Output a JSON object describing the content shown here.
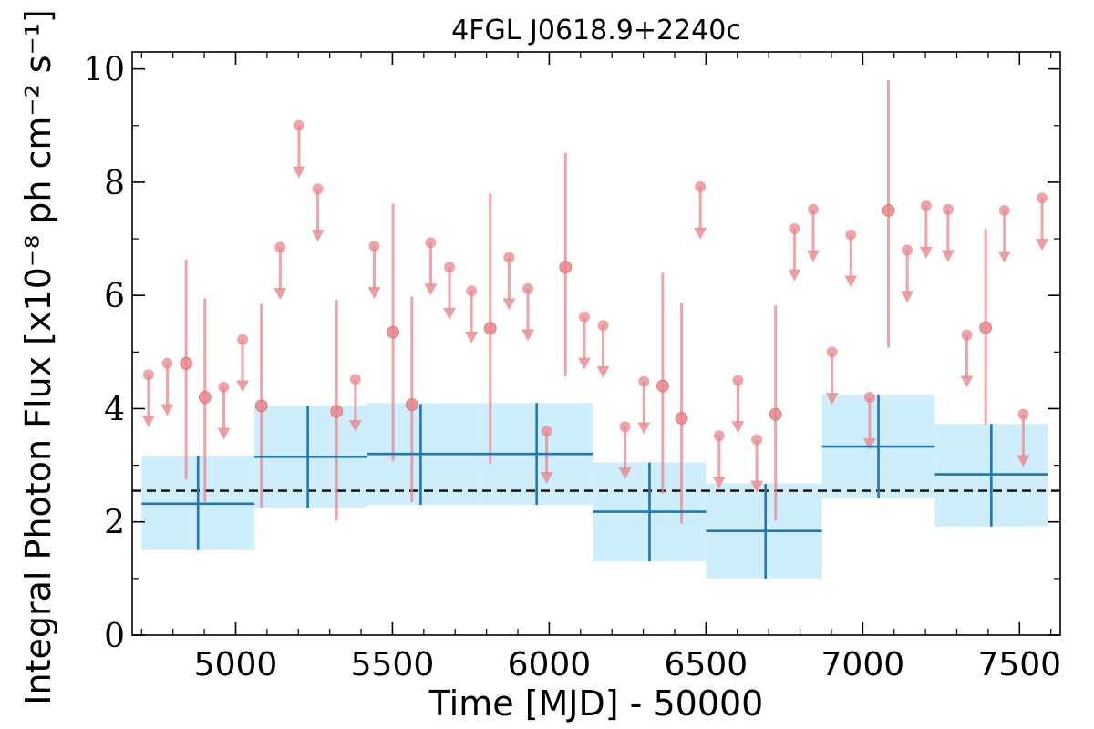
{
  "chart_data": {
    "type": "scatter",
    "title": "4FGL J0618.9+2240c",
    "xlabel": "Time [MJD] - 50000",
    "ylabel": "Integral Photon Flux [x10⁻⁸ ph cm⁻² s⁻¹]",
    "xlim": [
      4670,
      7630
    ],
    "ylim": [
      0,
      10.3
    ],
    "xticks": [
      5000,
      5500,
      6000,
      6500,
      7000,
      7500
    ],
    "yticks": [
      0,
      2,
      4,
      6,
      8,
      10
    ],
    "grid": false,
    "reference_line": 2.55,
    "colors": {
      "monthly": "#e8868c",
      "yearly_box": "#cfeefc",
      "yearly_line": "#1f77b4",
      "reference": "#000000"
    },
    "monthly_detections": [
      {
        "x": 4842,
        "y": 4.8,
        "ylo": 2.75,
        "yhi": 6.63
      },
      {
        "x": 4902,
        "y": 4.2,
        "ylo": 2.35,
        "yhi": 5.95
      },
      {
        "x": 5082,
        "y": 4.05,
        "ylo": 2.25,
        "yhi": 5.85
      },
      {
        "x": 5322,
        "y": 3.95,
        "ylo": 2.02,
        "yhi": 5.92
      },
      {
        "x": 5502,
        "y": 5.35,
        "ylo": 3.07,
        "yhi": 7.62
      },
      {
        "x": 5562,
        "y": 4.07,
        "ylo": 2.35,
        "yhi": 5.98
      },
      {
        "x": 5812,
        "y": 5.42,
        "ylo": 3.02,
        "yhi": 7.8
      },
      {
        "x": 6052,
        "y": 6.5,
        "ylo": 4.57,
        "yhi": 8.52
      },
      {
        "x": 6362,
        "y": 4.4,
        "ylo": 2.5,
        "yhi": 6.4
      },
      {
        "x": 6422,
        "y": 3.83,
        "ylo": 1.97,
        "yhi": 5.87
      },
      {
        "x": 6722,
        "y": 3.9,
        "ylo": 2.02,
        "yhi": 5.82
      },
      {
        "x": 7082,
        "y": 7.5,
        "ylo": 5.08,
        "yhi": 9.8
      },
      {
        "x": 7392,
        "y": 5.43,
        "ylo": 3.72,
        "yhi": 7.18
      }
    ],
    "monthly_upper_limits": [
      {
        "x": 4722,
        "y": 4.6
      },
      {
        "x": 4782,
        "y": 4.8
      },
      {
        "x": 4962,
        "y": 4.38
      },
      {
        "x": 5022,
        "y": 5.22
      },
      {
        "x": 5142,
        "y": 6.85
      },
      {
        "x": 5202,
        "y": 9.0
      },
      {
        "x": 5262,
        "y": 7.88
      },
      {
        "x": 5382,
        "y": 4.52
      },
      {
        "x": 5442,
        "y": 6.87
      },
      {
        "x": 5622,
        "y": 6.93
      },
      {
        "x": 5682,
        "y": 6.5
      },
      {
        "x": 5752,
        "y": 6.08
      },
      {
        "x": 5872,
        "y": 6.67
      },
      {
        "x": 5932,
        "y": 6.12
      },
      {
        "x": 5992,
        "y": 3.6
      },
      {
        "x": 6112,
        "y": 5.62
      },
      {
        "x": 6172,
        "y": 5.47
      },
      {
        "x": 6242,
        "y": 3.68
      },
      {
        "x": 6302,
        "y": 4.48
      },
      {
        "x": 6482,
        "y": 7.92
      },
      {
        "x": 6542,
        "y": 3.52
      },
      {
        "x": 6602,
        "y": 4.5
      },
      {
        "x": 6662,
        "y": 3.45
      },
      {
        "x": 6782,
        "y": 7.18
      },
      {
        "x": 6842,
        "y": 7.52
      },
      {
        "x": 6902,
        "y": 5.0
      },
      {
        "x": 6962,
        "y": 7.07
      },
      {
        "x": 7022,
        "y": 4.2
      },
      {
        "x": 7142,
        "y": 6.8
      },
      {
        "x": 7202,
        "y": 7.58
      },
      {
        "x": 7272,
        "y": 7.52
      },
      {
        "x": 7332,
        "y": 5.3
      },
      {
        "x": 7452,
        "y": 7.5
      },
      {
        "x": 7512,
        "y": 3.9
      },
      {
        "x": 7572,
        "y": 7.72
      }
    ],
    "yearly_bins": [
      {
        "x0": 4700,
        "x1": 5060,
        "xc": 4880,
        "y": 2.32,
        "ylo": 1.5,
        "yhi": 3.17,
        "box_lo": 1.5,
        "box_hi": 3.17
      },
      {
        "x0": 5060,
        "x1": 5420,
        "xc": 5230,
        "y": 3.15,
        "ylo": 2.25,
        "yhi": 4.05,
        "box_lo": 2.25,
        "box_hi": 4.05
      },
      {
        "x0": 5420,
        "x1": 5780,
        "xc": 5590,
        "y": 3.2,
        "ylo": 2.3,
        "yhi": 4.08,
        "box_lo": 2.3,
        "box_hi": 4.1
      },
      {
        "x0": 5780,
        "x1": 6140,
        "xc": 5960,
        "y": 3.2,
        "ylo": 2.3,
        "yhi": 4.1,
        "box_lo": 2.3,
        "box_hi": 4.1
      },
      {
        "x0": 6140,
        "x1": 6500,
        "xc": 6320,
        "y": 2.18,
        "ylo": 1.3,
        "yhi": 3.05,
        "box_lo": 1.3,
        "box_hi": 3.05
      },
      {
        "x0": 6500,
        "x1": 6870,
        "xc": 6690,
        "y": 1.84,
        "ylo": 1.0,
        "yhi": 2.67,
        "box_lo": 1.0,
        "box_hi": 2.68
      },
      {
        "x0": 6870,
        "x1": 7230,
        "xc": 7050,
        "y": 3.33,
        "ylo": 2.42,
        "yhi": 4.25,
        "box_lo": 2.42,
        "box_hi": 4.25
      },
      {
        "x0": 7230,
        "x1": 7590,
        "xc": 7410,
        "y": 2.84,
        "ylo": 1.92,
        "yhi": 3.73,
        "box_lo": 1.92,
        "box_hi": 3.73
      }
    ]
  }
}
